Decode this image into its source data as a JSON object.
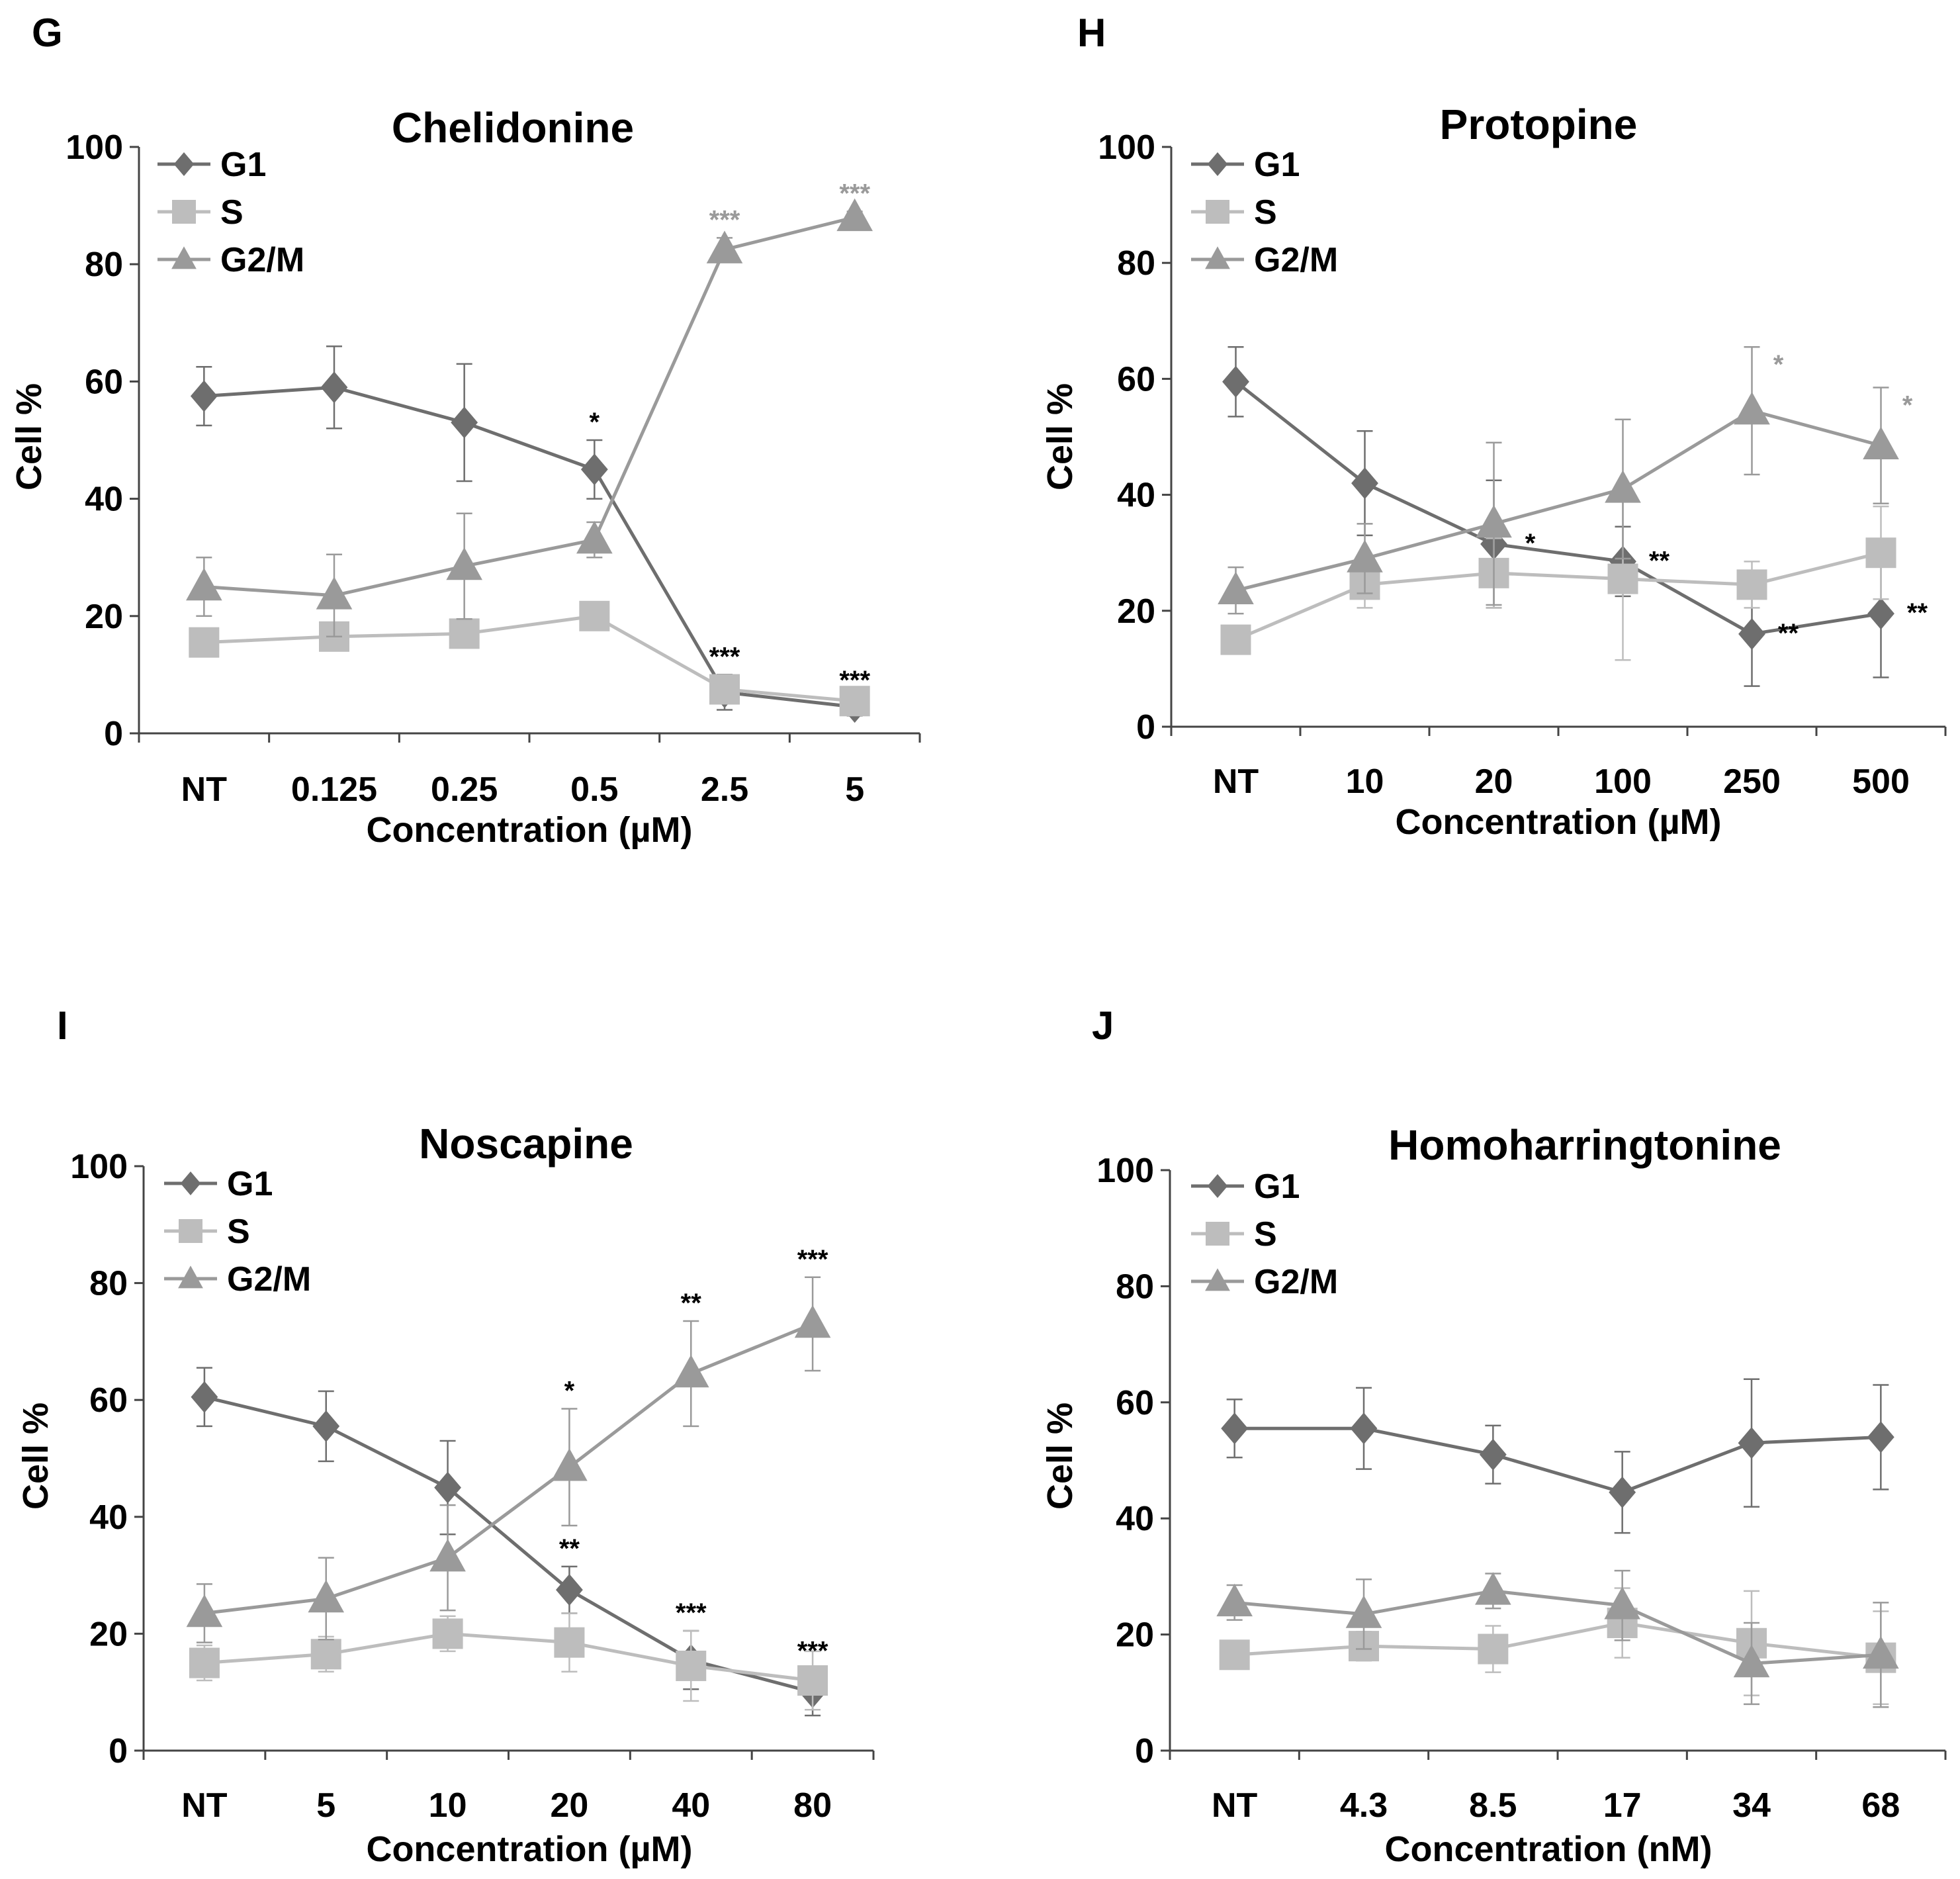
{
  "colors": {
    "G1": "#6e6e6e",
    "S": "#bdbdbd",
    "G2M": "#9a9a9a",
    "sig_black": "#000000",
    "sig_gray": "#9a9a9a",
    "axis": "#444444"
  },
  "chart_data": [
    {
      "type": "line",
      "panel": "G",
      "title": "Chelidonine",
      "xlabel": "Concentration (µM)",
      "ylabel": "Cell %",
      "ylim": [
        0,
        100
      ],
      "yticks": [
        0,
        20,
        40,
        60,
        80,
        100
      ],
      "categories": [
        "NT",
        "0.125",
        "0.25",
        "0.5",
        "2.5",
        "5"
      ],
      "legend": [
        "G1",
        "S",
        "G2/M"
      ],
      "series": [
        {
          "name": "G1",
          "marker": "diamond",
          "values": [
            57.5,
            59,
            53,
            45,
            7,
            4.5
          ],
          "errors": [
            5,
            7,
            10,
            5,
            3,
            1.5
          ]
        },
        {
          "name": "S",
          "marker": "square",
          "values": [
            15.5,
            16.5,
            17,
            20,
            7.5,
            5.5
          ],
          "errors": [
            2,
            2,
            2,
            2,
            1.5,
            1
          ]
        },
        {
          "name": "G2/M",
          "marker": "triangle",
          "values": [
            25,
            23.5,
            28.5,
            33,
            82.5,
            88
          ],
          "errors": [
            5,
            7,
            9,
            3,
            2,
            1
          ]
        }
      ],
      "annotations": [
        {
          "series": "G1",
          "index": 3,
          "text": "*",
          "color": "black"
        },
        {
          "series": "G1",
          "index": 4,
          "text": "***",
          "color": "black"
        },
        {
          "series": "G1",
          "index": 5,
          "text": "***",
          "color": "black"
        },
        {
          "series": "G2/M",
          "index": 4,
          "text": "***",
          "color": "gray"
        },
        {
          "series": "G2/M",
          "index": 5,
          "text": "***",
          "color": "gray"
        }
      ]
    },
    {
      "type": "line",
      "panel": "H",
      "title": "Protopine",
      "xlabel": "Concentration (µM)",
      "ylabel": "Cell %",
      "ylim": [
        0,
        100
      ],
      "yticks": [
        0,
        20,
        40,
        60,
        80,
        100
      ],
      "categories": [
        "NT",
        "10",
        "20",
        "100",
        "250",
        "500"
      ],
      "legend": [
        "G1",
        "S",
        "G2/M"
      ],
      "series": [
        {
          "name": "G1",
          "marker": "diamond",
          "values": [
            59.5,
            42,
            31.5,
            28.5,
            16,
            19.5
          ],
          "errors": [
            6,
            9,
            11,
            6,
            9,
            11
          ]
        },
        {
          "name": "S",
          "marker": "square",
          "values": [
            15,
            24.5,
            26.5,
            25.5,
            24.5,
            30
          ],
          "errors": [
            2,
            4,
            6,
            14,
            4,
            8
          ]
        },
        {
          "name": "G2/M",
          "marker": "triangle",
          "values": [
            23.5,
            29,
            35,
            41,
            54.5,
            48.5
          ],
          "errors": [
            4,
            6,
            14,
            12,
            11,
            10
          ]
        }
      ],
      "annotations": [
        {
          "series": "G1",
          "index": 2,
          "text": "*",
          "color": "black"
        },
        {
          "series": "G1",
          "index": 3,
          "text": "**",
          "color": "black"
        },
        {
          "series": "G1",
          "index": 4,
          "text": "**",
          "color": "black"
        },
        {
          "series": "G1",
          "index": 5,
          "text": "**",
          "color": "black"
        },
        {
          "series": "G2/M",
          "index": 4,
          "text": "*",
          "color": "gray"
        },
        {
          "series": "G2/M",
          "index": 5,
          "text": "*",
          "color": "gray"
        }
      ]
    },
    {
      "type": "line",
      "panel": "I",
      "title": "Noscapine",
      "xlabel": "Concentration (µM)",
      "ylabel": "Cell %",
      "ylim": [
        0,
        100
      ],
      "yticks": [
        0,
        20,
        40,
        60,
        80,
        100
      ],
      "categories": [
        "NT",
        "5",
        "10",
        "20",
        "40",
        "80"
      ],
      "legend": [
        "G1",
        "S",
        "G2/M"
      ],
      "series": [
        {
          "name": "G1",
          "marker": "diamond",
          "values": [
            60.5,
            55.5,
            45,
            27.5,
            15.5,
            10
          ],
          "errors": [
            5,
            6,
            8,
            4,
            5,
            4
          ]
        },
        {
          "name": "S",
          "marker": "square",
          "values": [
            15,
            16.5,
            20,
            18.5,
            14.5,
            12
          ],
          "errors": [
            3,
            3,
            3,
            5,
            6,
            5
          ]
        },
        {
          "name": "G2/M",
          "marker": "triangle",
          "values": [
            23.5,
            26,
            33,
            48.5,
            64.5,
            73
          ],
          "errors": [
            5,
            7,
            9,
            10,
            9,
            8
          ]
        }
      ],
      "annotations": [
        {
          "series": "G1",
          "index": 3,
          "text": "**",
          "color": "black"
        },
        {
          "series": "G1",
          "index": 4,
          "text": "***",
          "color": "black"
        },
        {
          "series": "G1",
          "index": 5,
          "text": "***",
          "color": "black"
        },
        {
          "series": "G2/M",
          "index": 3,
          "text": "*",
          "color": "black"
        },
        {
          "series": "G2/M",
          "index": 4,
          "text": "**",
          "color": "black"
        },
        {
          "series": "G2/M",
          "index": 5,
          "text": "***",
          "color": "black"
        }
      ]
    },
    {
      "type": "line",
      "panel": "J",
      "title": "Homoharringtonine",
      "xlabel": "Concentration (nM)",
      "ylabel": "Cell %",
      "ylim": [
        0,
        100
      ],
      "yticks": [
        0,
        20,
        40,
        60,
        80,
        100
      ],
      "categories": [
        "NT",
        "4.3",
        "8.5",
        "17",
        "34",
        "68"
      ],
      "legend": [
        "G1",
        "S",
        "G2/M"
      ],
      "series": [
        {
          "name": "G1",
          "marker": "diamond",
          "values": [
            55.5,
            55.5,
            51,
            44.5,
            53,
            54
          ],
          "errors": [
            5,
            7,
            5,
            7,
            11,
            9
          ]
        },
        {
          "name": "S",
          "marker": "square",
          "values": [
            16.5,
            18,
            17.5,
            22,
            18.5,
            16
          ],
          "errors": [
            2,
            2.5,
            4,
            6,
            9,
            8
          ]
        },
        {
          "name": "G2/M",
          "marker": "triangle",
          "values": [
            25.5,
            23.5,
            27.5,
            25,
            15,
            16.5
          ],
          "errors": [
            3,
            6,
            3,
            6,
            7,
            9
          ]
        }
      ],
      "annotations": []
    }
  ]
}
